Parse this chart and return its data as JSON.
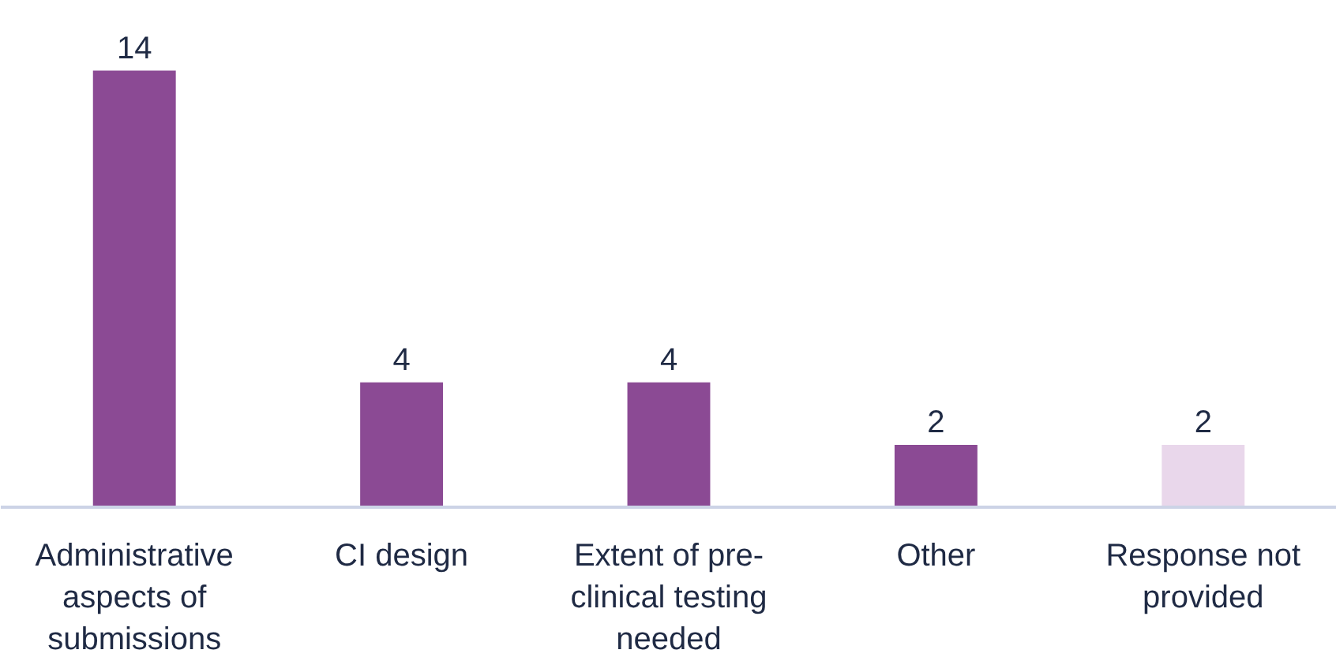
{
  "chart_data": {
    "type": "bar",
    "categories": [
      "Administrative\naspects of\nsubmissions",
      "CI design",
      "Extent of pre-\nclinical testing\nneeded",
      "Other",
      "Response not\nprovided"
    ],
    "values": [
      14,
      4,
      4,
      2,
      2
    ],
    "colors": [
      "#8b4a94",
      "#8b4a94",
      "#8b4a94",
      "#8b4a94",
      "#e9d7eb"
    ],
    "data_labels": true,
    "grid": false
  }
}
